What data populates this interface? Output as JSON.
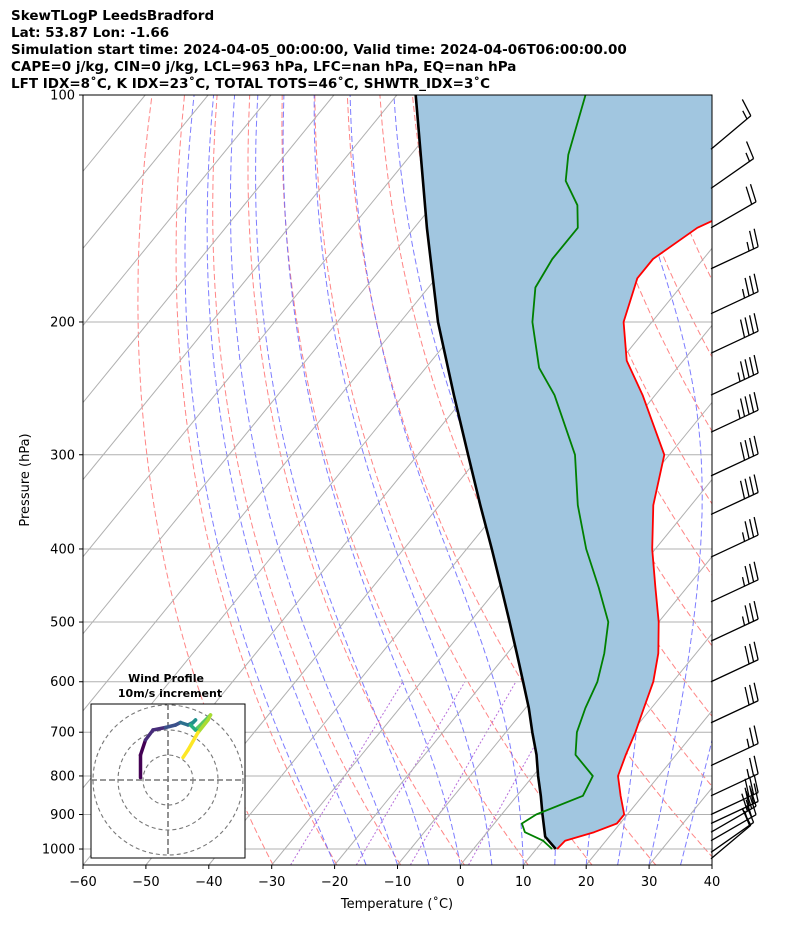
{
  "header": {
    "line1": "SkewTLogP LeedsBradford",
    "line2": "Lat: 53.87   Lon: -1.66",
    "line3": "Simulation start time: 2024-04-05_00:00:00, Valid time: 2024-04-06T06:00:00.00",
    "line4": "CAPE=0 j/kg, CIN=0 j/kg, LCL=963 hPa, LFC=nan hPa, EQ=nan hPa",
    "line5": "LFT IDX=8˚C, K IDX=23˚C, TOTAL TOTS=46˚C, SHWTR_IDX=3˚C"
  },
  "chart_data": {
    "type": "skewt-logp",
    "xlabel": "Temperature (˚C)",
    "ylabel": "Pressure (hPa)",
    "x_ticks": [
      "−60",
      "−50",
      "−40",
      "−30",
      "−20",
      "−10",
      "0",
      "10",
      "20",
      "30",
      "40"
    ],
    "x_tick_values": [
      -60,
      -50,
      -40,
      -30,
      -20,
      -10,
      0,
      10,
      20,
      30,
      40
    ],
    "y_ticks": [
      "100",
      "200",
      "300",
      "400",
      "500",
      "600",
      "700",
      "800",
      "900",
      "1000"
    ],
    "y_tick_values": [
      100,
      200,
      300,
      400,
      500,
      600,
      700,
      800,
      900,
      1000
    ],
    "xlim": [
      -60,
      40
    ],
    "ylim": [
      1050,
      100
    ],
    "colors": {
      "temperature": "#ff0000",
      "dewpoint": "#008000",
      "parcel": "#000000",
      "cin_fill": "#a1c6e0",
      "isotherm": "#b0b0b0",
      "dry_adiabat": "#ff6666",
      "moist_adiabat": "#6666ff",
      "mixing_ratio": "#9933cc"
    },
    "series": [
      {
        "name": "Temperature",
        "points": [
          [
            1000,
            13.3
          ],
          [
            975,
            13.5
          ],
          [
            950,
            17
          ],
          [
            925,
            19.5
          ],
          [
            900,
            19.5
          ],
          [
            850,
            16.5
          ],
          [
            800,
            13.5
          ],
          [
            750,
            12
          ],
          [
            700,
            10.6
          ],
          [
            650,
            8.8
          ],
          [
            600,
            6.9
          ],
          [
            550,
            4
          ],
          [
            500,
            0
          ],
          [
            450,
            -5
          ],
          [
            400,
            -10.5
          ],
          [
            350,
            -16
          ],
          [
            300,
            -20.8
          ],
          [
            250,
            -32
          ],
          [
            225,
            -39
          ],
          [
            200,
            -44.5
          ],
          [
            175,
            -48
          ],
          [
            165,
            -48
          ],
          [
            150,
            -45
          ],
          [
            130,
            -35
          ],
          [
            115,
            -29
          ],
          [
            108,
            -27
          ],
          [
            100,
            -26
          ]
        ]
      },
      {
        "name": "Dewpoint",
        "points": [
          [
            1000,
            12.5
          ],
          [
            975,
            10
          ],
          [
            950,
            6
          ],
          [
            925,
            4.4
          ],
          [
            900,
            5.5
          ],
          [
            850,
            10.5
          ],
          [
            800,
            9.5
          ],
          [
            750,
            4
          ],
          [
            700,
            1.3
          ],
          [
            650,
            -0.5
          ],
          [
            600,
            -2
          ],
          [
            550,
            -4.6
          ],
          [
            500,
            -8
          ],
          [
            450,
            -14
          ],
          [
            400,
            -21
          ],
          [
            350,
            -28
          ],
          [
            300,
            -35
          ],
          [
            250,
            -46
          ],
          [
            230,
            -52
          ],
          [
            200,
            -59
          ],
          [
            180,
            -63
          ],
          [
            165,
            -64
          ],
          [
            150,
            -64
          ],
          [
            140,
            -67
          ],
          [
            130,
            -72
          ],
          [
            120,
            -75
          ],
          [
            100,
            -80
          ]
        ]
      },
      {
        "name": "Parcel",
        "points": [
          [
            1000,
            13.1
          ],
          [
            963,
            9.8
          ],
          [
            900,
            6.5
          ],
          [
            850,
            3.8
          ],
          [
            800,
            0.8
          ],
          [
            750,
            -2.2
          ],
          [
            700,
            -5.8
          ],
          [
            650,
            -9.5
          ],
          [
            600,
            -13.8
          ],
          [
            550,
            -18.5
          ],
          [
            500,
            -23.7
          ],
          [
            450,
            -29.5
          ],
          [
            400,
            -36
          ],
          [
            350,
            -43.5
          ],
          [
            300,
            -52
          ],
          [
            250,
            -62
          ],
          [
            200,
            -74
          ],
          [
            150,
            -88
          ],
          [
            100,
            -107
          ]
        ]
      }
    ],
    "inset": {
      "title": "Wind Profile",
      "subtitle": "10m/s increment",
      "hodograph": [
        [
          -11,
          1
        ],
        [
          -11,
          10
        ],
        [
          -9,
          16
        ],
        [
          -6,
          20
        ],
        [
          -1,
          21
        ],
        [
          3,
          22
        ],
        [
          5,
          23
        ],
        [
          8,
          22
        ],
        [
          10,
          23
        ],
        [
          11,
          24
        ],
        [
          9,
          22
        ],
        [
          11,
          20
        ],
        [
          12,
          21
        ],
        [
          14,
          23
        ],
        [
          17,
          26
        ],
        [
          16,
          24
        ],
        [
          12,
          19
        ],
        [
          8,
          12
        ],
        [
          6,
          9
        ]
      ]
    },
    "wind_barbs": [
      {
        "p": 1030,
        "speed_kt": 10,
        "dir_deg": 230
      },
      {
        "p": 1010,
        "speed_kt": 20,
        "dir_deg": 235
      },
      {
        "p": 975,
        "speed_kt": 25,
        "dir_deg": 240
      },
      {
        "p": 950,
        "speed_kt": 30,
        "dir_deg": 240
      },
      {
        "p": 925,
        "speed_kt": 30,
        "dir_deg": 245
      },
      {
        "p": 900,
        "speed_kt": 30,
        "dir_deg": 245
      },
      {
        "p": 850,
        "speed_kt": 25,
        "dir_deg": 245
      },
      {
        "p": 775,
        "speed_kt": 25,
        "dir_deg": 245
      },
      {
        "p": 680,
        "speed_kt": 30,
        "dir_deg": 245
      },
      {
        "p": 600,
        "speed_kt": 30,
        "dir_deg": 245
      },
      {
        "p": 530,
        "speed_kt": 35,
        "dir_deg": 245
      },
      {
        "p": 470,
        "speed_kt": 35,
        "dir_deg": 245
      },
      {
        "p": 410,
        "speed_kt": 35,
        "dir_deg": 245
      },
      {
        "p": 360,
        "speed_kt": 40,
        "dir_deg": 245
      },
      {
        "p": 320,
        "speed_kt": 40,
        "dir_deg": 245
      },
      {
        "p": 280,
        "speed_kt": 45,
        "dir_deg": 245
      },
      {
        "p": 250,
        "speed_kt": 45,
        "dir_deg": 245
      },
      {
        "p": 220,
        "speed_kt": 40,
        "dir_deg": 245
      },
      {
        "p": 195,
        "speed_kt": 35,
        "dir_deg": 245
      },
      {
        "p": 170,
        "speed_kt": 25,
        "dir_deg": 245
      },
      {
        "p": 150,
        "speed_kt": 20,
        "dir_deg": 240
      },
      {
        "p": 133,
        "speed_kt": 15,
        "dir_deg": 235
      },
      {
        "p": 118,
        "speed_kt": 15,
        "dir_deg": 230
      }
    ]
  }
}
